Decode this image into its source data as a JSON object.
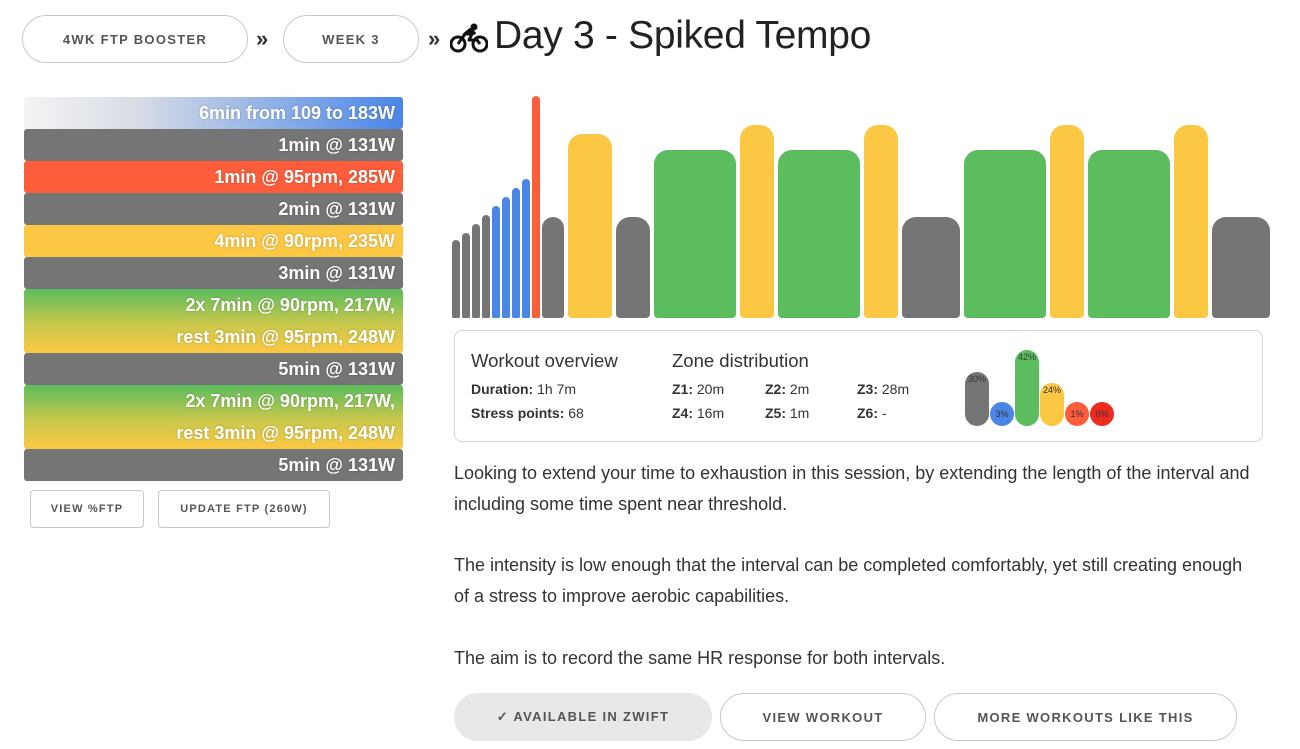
{
  "breadcrumb": {
    "plan": "4WK FTP BOOSTER",
    "week": "WEEK 3",
    "separator": "»"
  },
  "title": "Day 3 - Spiked Tempo",
  "icons": {
    "title_icon": "bike-icon"
  },
  "intervals": [
    {
      "lines": [
        "6min from 109 to 183W"
      ],
      "zone": "ramp"
    },
    {
      "lines": [
        "1min @ 131W"
      ],
      "zone": "gray"
    },
    {
      "lines": [
        "1min @ 95rpm, 285W"
      ],
      "zone": "red"
    },
    {
      "lines": [
        "2min @ 131W"
      ],
      "zone": "gray"
    },
    {
      "lines": [
        "4min @ 90rpm, 235W"
      ],
      "zone": "yellow"
    },
    {
      "lines": [
        "3min @ 131W"
      ],
      "zone": "gray"
    },
    {
      "lines": [
        "2x 7min @ 90rpm, 217W,",
        "rest 3min @ 95rpm, 248W"
      ],
      "zone": "green"
    },
    {
      "lines": [
        "5min @ 131W"
      ],
      "zone": "gray"
    },
    {
      "lines": [
        "2x 7min @ 90rpm, 217W,",
        "rest 3min @ 95rpm, 248W"
      ],
      "zone": "green"
    },
    {
      "lines": [
        "5min @ 131W"
      ],
      "zone": "gray"
    }
  ],
  "actions": {
    "view_ftp": "VIEW %FTP",
    "update_ftp": "UPDATE FTP (260W)"
  },
  "colors": {
    "gray": "#757575",
    "blue": "#4a86e8",
    "green": "#5bbd5d",
    "yellow": "#fcc742",
    "orange": "#fd5d3a",
    "red": "#ec2c21"
  },
  "workout_bars": [
    {
      "zone": "gray",
      "level": 0.35
    },
    {
      "zone": "gray",
      "level": 0.38
    },
    {
      "zone": "gray",
      "level": 0.42
    },
    {
      "zone": "gray",
      "level": 0.46
    },
    {
      "zone": "blue",
      "level": 0.5
    },
    {
      "zone": "blue",
      "level": 0.54
    },
    {
      "zone": "blue",
      "level": 0.58
    },
    {
      "zone": "blue",
      "level": 0.62
    },
    {
      "zone": "orange",
      "level": 0.99
    },
    {
      "zone": "gray",
      "level": 0.45
    },
    {
      "zone": "yellow",
      "level": 0.82
    },
    {
      "zone": "gray",
      "level": 0.45
    },
    {
      "zone": "green",
      "level": 0.75
    },
    {
      "zone": "yellow",
      "level": 0.86
    },
    {
      "zone": "green",
      "level": 0.75
    },
    {
      "zone": "yellow",
      "level": 0.86
    },
    {
      "zone": "gray",
      "level": 0.45
    },
    {
      "zone": "green",
      "level": 0.75
    },
    {
      "zone": "yellow",
      "level": 0.86
    },
    {
      "zone": "green",
      "level": 0.75
    },
    {
      "zone": "yellow",
      "level": 0.86
    },
    {
      "zone": "gray",
      "level": 0.45
    }
  ],
  "overview": {
    "heading": "Workout overview",
    "duration_label": "Duration:",
    "duration_value": "1h 7m",
    "stress_label": "Stress points:",
    "stress_value": "68"
  },
  "zones": {
    "heading": "Zone distribution",
    "items": [
      {
        "label": "Z1:",
        "value": "20m"
      },
      {
        "label": "Z2:",
        "value": "2m"
      },
      {
        "label": "Z3:",
        "value": "28m"
      },
      {
        "label": "Z4:",
        "value": "16m"
      },
      {
        "label": "Z5:",
        "value": "1m"
      },
      {
        "label": "Z6:",
        "value": "-"
      }
    ],
    "distribution": [
      {
        "zone": "gray",
        "percent": "30%",
        "fraction": 0.3
      },
      {
        "zone": "blue",
        "percent": "3%",
        "fraction": 0.03
      },
      {
        "zone": "green",
        "percent": "42%",
        "fraction": 0.42
      },
      {
        "zone": "yellow",
        "percent": "24%",
        "fraction": 0.24
      },
      {
        "zone": "orange",
        "percent": "1%",
        "fraction": 0.01
      },
      {
        "zone": "red",
        "percent": "0%",
        "fraction": 0.0
      }
    ]
  },
  "description": [
    "Looking to extend your time to exhaustion in this session, by extending the length of the interval and including some time spent near threshold.",
    "The intensity is low enough that the interval can be completed comfortably, yet still creating enough of a stress to improve aerobic capabilities.",
    "The aim is to record the same HR response for both intervals."
  ],
  "bottom_actions": {
    "zwift": "✓ AVAILABLE IN ZWIFT",
    "view_workout": "VIEW WORKOUT",
    "more_workouts": "MORE WORKOUTS LIKE THIS"
  }
}
